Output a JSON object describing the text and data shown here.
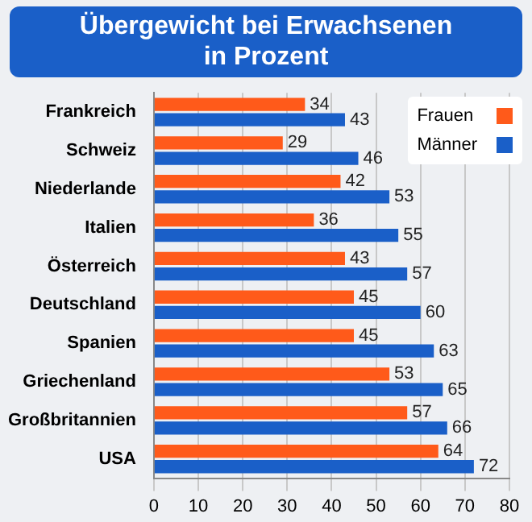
{
  "chart_data": {
    "type": "bar",
    "orientation": "horizontal",
    "title": "Übergewicht bei Erwachsenen\nin Prozent",
    "categories": [
      "Frankreich",
      "Schweiz",
      "Niederlande",
      "Italien",
      "Österreich",
      "Deutschland",
      "Spanien",
      "Griechenland",
      "Großbritannien",
      "USA"
    ],
    "series": [
      {
        "name": "Frauen",
        "color": "#ff5a1a",
        "values": [
          34,
          29,
          42,
          36,
          43,
          45,
          45,
          53,
          57,
          64
        ]
      },
      {
        "name": "Männer",
        "color": "#1a5fc8",
        "values": [
          43,
          46,
          53,
          55,
          57,
          60,
          63,
          65,
          66,
          72
        ]
      }
    ],
    "xlim": [
      0,
      80
    ],
    "xticks": [
      0,
      10,
      20,
      30,
      40,
      50,
      60,
      70,
      80
    ],
    "grid": "x",
    "legend": "top right",
    "data_labels": true
  }
}
